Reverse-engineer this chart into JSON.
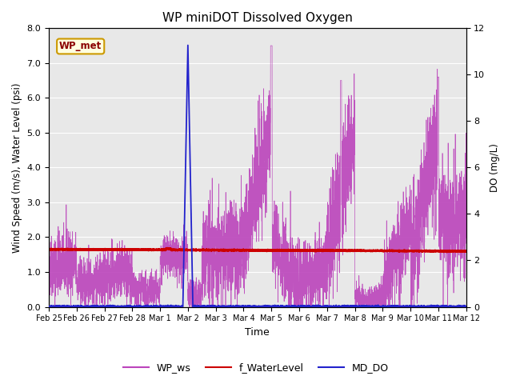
{
  "title": "WP miniDOT Dissolved Oxygen",
  "xlabel": "Time",
  "ylabel_left": "Wind Speed (m/s), Water Level (psi)",
  "ylabel_right": "DO (mg/L)",
  "annotation": "WP_met",
  "legend_labels": [
    "WP_ws",
    "f_WaterLevel",
    "MD_DO"
  ],
  "wp_ws_color": "#bb44bb",
  "f_water_color": "#cc0000",
  "md_do_color": "#2222cc",
  "left_ylim": [
    0.0,
    8.0
  ],
  "right_ylim": [
    0,
    12
  ],
  "left_yticks": [
    0.0,
    1.0,
    2.0,
    3.0,
    4.0,
    5.0,
    6.0,
    7.0,
    8.0
  ],
  "right_yticks": [
    0,
    2,
    4,
    6,
    8,
    10,
    12
  ],
  "xtick_labels": [
    "Feb 25",
    "Feb 26",
    "Feb 27",
    "Feb 28",
    "Mar 1",
    "Mar 2",
    "Mar 3",
    "Mar 4",
    "Mar 5",
    "Mar 6",
    "Mar 7",
    "Mar 8",
    "Mar 9",
    "Mar 10",
    "Mar 11",
    "Mar 12"
  ],
  "n_points": 5000,
  "seed": 42,
  "bg_color": "#e8e8e8"
}
